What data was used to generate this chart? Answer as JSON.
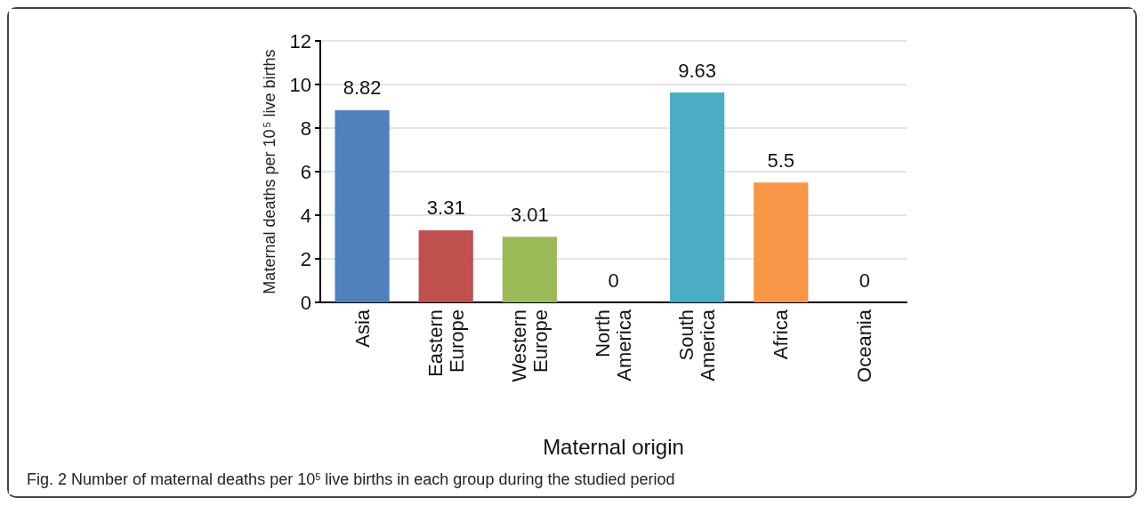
{
  "chart_data": {
    "type": "bar",
    "categories": [
      "Asia",
      "Eastern Europe",
      "Western Europe",
      "North America",
      "South America",
      "Africa",
      "Oceania"
    ],
    "values": [
      8.82,
      3.31,
      3.01,
      0,
      9.63,
      5.5,
      0
    ],
    "colors": [
      "#4f81bd",
      "#c0504d",
      "#9bbb59",
      "#8064a2",
      "#4bacc6",
      "#f79646",
      "#1f497d"
    ],
    "xlabel": "Maternal origin",
    "ylabel": "Maternal deaths per 10$^{5}$ live births",
    "ylim": [
      0,
      12
    ],
    "yticks": [
      0,
      2,
      4,
      6,
      8,
      10,
      12
    ],
    "grid": "y",
    "data_labels": true,
    "annotations": [
      "Fig. 2 Number of maternal deaths per 10$^{5}$ live births in each group during the studied period"
    ]
  }
}
